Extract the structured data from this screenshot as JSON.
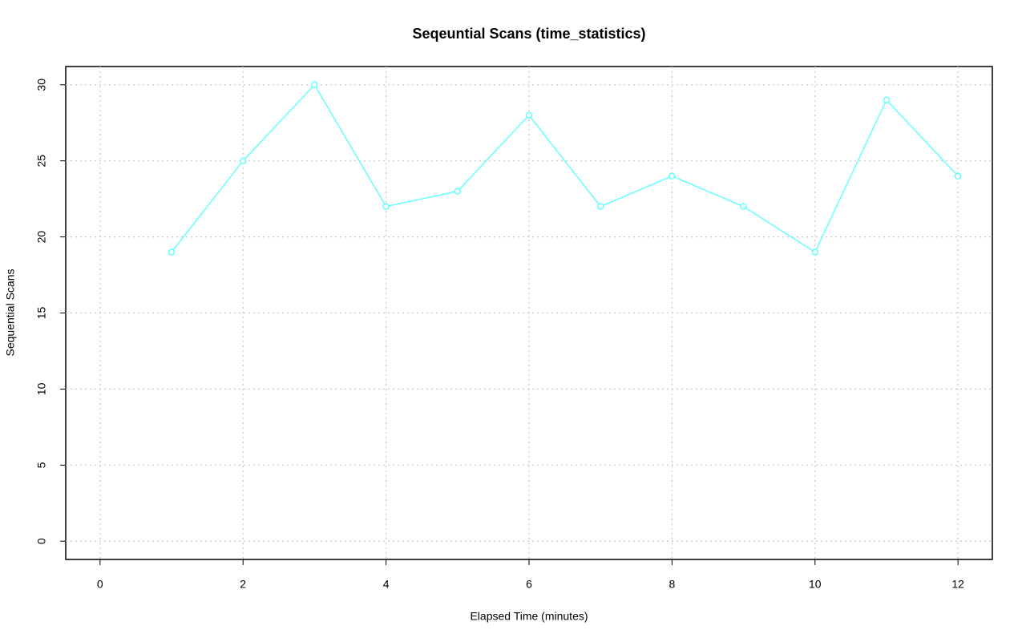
{
  "chart_data": {
    "type": "line",
    "title": "Seqeuntial Scans (time_statistics)",
    "x_label": "Elapsed Time (minutes)",
    "y_label": "Sequential Scans",
    "x": [
      1,
      2,
      3,
      4,
      5,
      6,
      7,
      8,
      9,
      10,
      11,
      12
    ],
    "series": [
      {
        "name": "Sequential Scans",
        "color": "#66ffff",
        "values": [
          19,
          25,
          30,
          22,
          23,
          28,
          22,
          24,
          22,
          19,
          29,
          24
        ]
      }
    ],
    "xlim": [
      -0.48,
      12.48
    ],
    "ylim": [
      -1.2,
      31.2
    ],
    "xticks": [
      0,
      2,
      4,
      6,
      8,
      10,
      12
    ],
    "yticks": [
      0,
      5,
      10,
      15,
      20,
      25,
      30
    ],
    "grid": true
  }
}
